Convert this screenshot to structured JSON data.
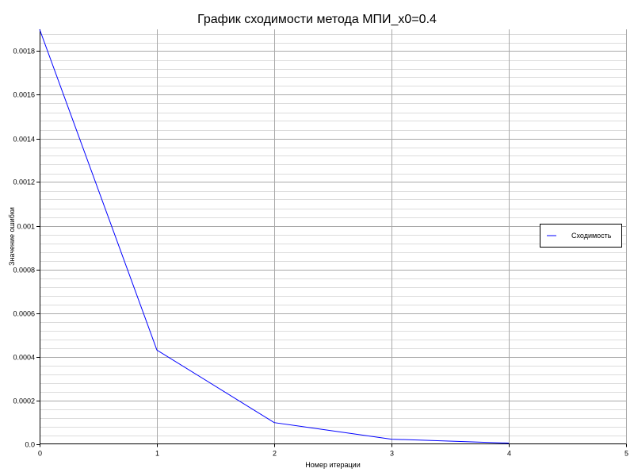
{
  "chart_data": {
    "type": "line",
    "title": "График сходимости метода МПИ_x0=0.4",
    "xlabel": "Номер итерации",
    "ylabel": "Значение ошибки",
    "xlim": [
      0,
      5
    ],
    "ylim": [
      0,
      0.0019
    ],
    "x_ticks": [
      "0",
      "1",
      "2",
      "3",
      "4",
      "5"
    ],
    "y_ticks": [
      "0.0",
      "0.0002",
      "0.0004",
      "0.0006",
      "0.0008",
      "0.001",
      "0.0012",
      "0.0014",
      "0.0016",
      "0.0018"
    ],
    "grid": true,
    "legend_position": "right",
    "series": [
      {
        "name": "Сходимость",
        "color": "#0000ff",
        "x": [
          0,
          1,
          2,
          3,
          4
        ],
        "y": [
          0.0019,
          0.00043,
          9.75e-05,
          2.15e-05,
          3.5e-06
        ]
      }
    ]
  }
}
